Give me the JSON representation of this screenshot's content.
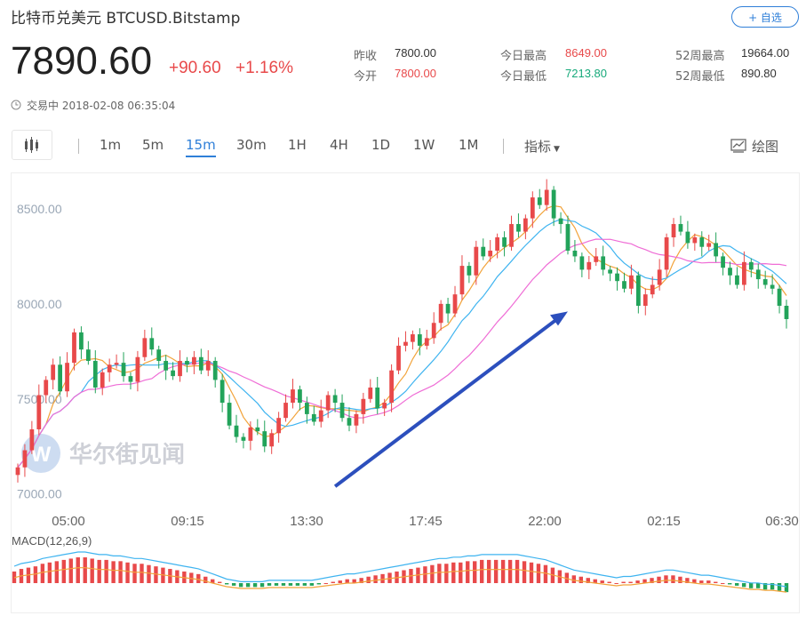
{
  "header": {
    "title": "比特币兑美元  BTCUSD.Bitstamp",
    "follow_label": "+ 自选",
    "price": "7890.60",
    "change": "+90.60",
    "change_pct": "+1.16%",
    "status": "交易中 2018-02-08 06:35:04"
  },
  "stats": [
    {
      "label": "昨收",
      "value": "7800.00",
      "color": "#333333"
    },
    {
      "label": "今开",
      "value": "7800.00",
      "color": "#e8494a"
    },
    {
      "label": "今日最高",
      "value": "8649.00",
      "color": "#e8494a"
    },
    {
      "label": "今日最低",
      "value": "7213.80",
      "color": "#16a97a"
    },
    {
      "label": "52周最高",
      "value": "19664.00",
      "color": "#333333"
    },
    {
      "label": "52周最低",
      "value": "890.80",
      "color": "#333333"
    }
  ],
  "toolbar": {
    "intervals": [
      "1m",
      "5m",
      "15m",
      "30m",
      "1H",
      "4H",
      "1D",
      "1W",
      "1M"
    ],
    "active_interval": "15m",
    "indicator_label": "指标",
    "draw_label": "绘图"
  },
  "watermark": "华尔街见闻",
  "chart_data": {
    "type": "candlestick",
    "y_ticks": [
      "8500.00",
      "8000.00",
      "7500.00",
      "7000.00"
    ],
    "ylim": [
      6980,
      8640
    ],
    "x_ticks": [
      "05:00",
      "09:15",
      "13:30",
      "17:45",
      "22:00",
      "02:15",
      "06:30"
    ],
    "closes": [
      7140,
      7230,
      7340,
      7520,
      7600,
      7680,
      7540,
      7690,
      7850,
      7760,
      7700,
      7560,
      7640,
      7680,
      7690,
      7620,
      7590,
      7720,
      7820,
      7760,
      7700,
      7650,
      7620,
      7700,
      7680,
      7720,
      7650,
      7700,
      7600,
      7480,
      7360,
      7300,
      7280,
      7350,
      7330,
      7250,
      7320,
      7400,
      7480,
      7550,
      7480,
      7420,
      7380,
      7440,
      7520,
      7480,
      7400,
      7360,
      7420,
      7500,
      7560,
      7450,
      7480,
      7650,
      7780,
      7800,
      7840,
      7780,
      7820,
      7900,
      8000,
      7950,
      8050,
      8200,
      8150,
      8300,
      8250,
      8280,
      8350,
      8300,
      8420,
      8380,
      8450,
      8560,
      8520,
      8600,
      8450,
      8420,
      8280,
      8250,
      8180,
      8220,
      8250,
      8180,
      8160,
      8120,
      8080,
      8150,
      7990,
      8050,
      8100,
      8180,
      8350,
      8420,
      8380,
      8320,
      8350,
      8300,
      8320,
      8250,
      8190,
      8150,
      8100,
      8220,
      8180,
      8130,
      8100,
      8080,
      7990,
      7920
    ],
    "macd_label": "MACD(12,26,9)",
    "macd_hist": [
      9,
      11,
      12,
      13,
      15,
      16,
      17,
      18,
      19,
      20,
      20,
      19,
      18,
      18,
      17,
      17,
      16,
      15,
      15,
      14,
      13,
      12,
      11,
      10,
      9,
      8,
      7,
      5,
      3,
      1,
      -1,
      -2,
      -3,
      -3,
      -3,
      -3,
      -2,
      -2,
      -2,
      -2,
      -2,
      -2,
      -2,
      -1,
      0,
      1,
      2,
      3,
      3,
      4,
      5,
      6,
      7,
      8,
      9,
      10,
      11,
      12,
      13,
      14,
      15,
      15,
      16,
      16,
      17,
      17,
      18,
      18,
      18,
      18,
      18,
      18,
      17,
      16,
      15,
      14,
      12,
      10,
      8,
      6,
      5,
      4,
      3,
      2,
      1,
      0,
      1,
      1,
      2,
      3,
      4,
      5,
      6,
      6,
      5,
      4,
      3,
      2,
      2,
      1,
      0,
      -1,
      -2,
      -3,
      -4,
      -4,
      -5,
      -5,
      -6,
      -7
    ],
    "colors": {
      "up": "#e8494a",
      "down": "#22a35a",
      "ma1": "#f2a33a",
      "ma2": "#3fb4f0",
      "ma3": "#ef6dd6",
      "arrow": "#2c4fbd"
    }
  }
}
